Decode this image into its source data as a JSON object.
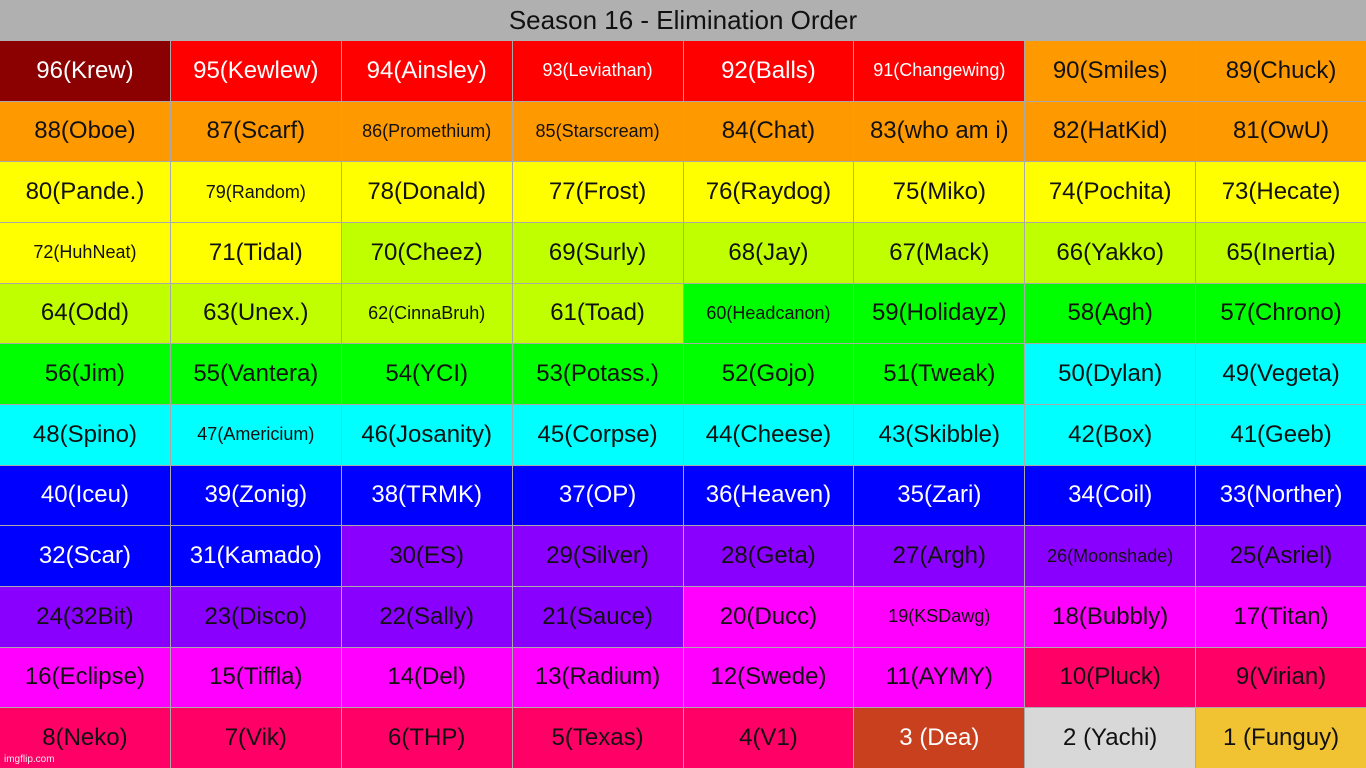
{
  "title": "Season 16 - Elimination Order",
  "watermark": "imgflip.com",
  "colors": {
    "darkred": "#8b0000",
    "red": "#ff0000",
    "orange": "#ff9900",
    "yellow": "#ffff00",
    "lime": "#bfff00",
    "green": "#00ff00",
    "cyan": "#00ffff",
    "blue": "#0000ff",
    "violet": "#8a00ff",
    "magenta": "#ff00ff",
    "pink": "#ff0066",
    "bronze": "#c8401e",
    "silver": "#d8d8d8",
    "gold": "#f1c232"
  },
  "cells": [
    {
      "label": "96(Krew)",
      "color": "darkred",
      "text": "#ffffff"
    },
    {
      "label": "95(Kewlew)",
      "color": "red",
      "text": "#ffffff"
    },
    {
      "label": "94(Ainsley)",
      "color": "red",
      "text": "#ffffff"
    },
    {
      "label": "93(Leviathan)",
      "color": "red",
      "text": "#ffffff",
      "small": true
    },
    {
      "label": "92(Balls)",
      "color": "red",
      "text": "#ffffff"
    },
    {
      "label": "91(Changewing)",
      "color": "red",
      "text": "#ffffff",
      "small": true
    },
    {
      "label": "90(Smiles)",
      "color": "orange",
      "text": "#111111"
    },
    {
      "label": "89(Chuck)",
      "color": "orange",
      "text": "#111111"
    },
    {
      "label": "88(Oboe)",
      "color": "orange",
      "text": "#111111"
    },
    {
      "label": "87(Scarf)",
      "color": "orange",
      "text": "#111111"
    },
    {
      "label": "86(Promethium)",
      "color": "orange",
      "text": "#111111",
      "small": true
    },
    {
      "label": "85(Starscream)",
      "color": "orange",
      "text": "#111111",
      "small": true
    },
    {
      "label": "84(Chat)",
      "color": "orange",
      "text": "#111111"
    },
    {
      "label": "83(who am i)",
      "color": "orange",
      "text": "#111111"
    },
    {
      "label": "82(HatKid)",
      "color": "orange",
      "text": "#111111"
    },
    {
      "label": "81(OwU)",
      "color": "orange",
      "text": "#111111"
    },
    {
      "label": "80(Pande.)",
      "color": "yellow",
      "text": "#111111"
    },
    {
      "label": "79(Random)",
      "color": "yellow",
      "text": "#111111",
      "small": true
    },
    {
      "label": "78(Donald)",
      "color": "yellow",
      "text": "#111111"
    },
    {
      "label": "77(Frost)",
      "color": "yellow",
      "text": "#111111"
    },
    {
      "label": "76(Raydog)",
      "color": "yellow",
      "text": "#111111"
    },
    {
      "label": "75(Miko)",
      "color": "yellow",
      "text": "#111111"
    },
    {
      "label": "74(Pochita)",
      "color": "yellow",
      "text": "#111111"
    },
    {
      "label": "73(Hecate)",
      "color": "yellow",
      "text": "#111111"
    },
    {
      "label": "72(HuhNeat)",
      "color": "yellow",
      "text": "#111111",
      "small": true
    },
    {
      "label": "71(Tidal)",
      "color": "yellow",
      "text": "#111111"
    },
    {
      "label": "70(Cheez)",
      "color": "lime",
      "text": "#111111"
    },
    {
      "label": "69(Surly)",
      "color": "lime",
      "text": "#111111"
    },
    {
      "label": "68(Jay)",
      "color": "lime",
      "text": "#111111"
    },
    {
      "label": "67(Mack)",
      "color": "lime",
      "text": "#111111"
    },
    {
      "label": "66(Yakko)",
      "color": "lime",
      "text": "#111111"
    },
    {
      "label": "65(Inertia)",
      "color": "lime",
      "text": "#111111"
    },
    {
      "label": "64(Odd)",
      "color": "lime",
      "text": "#111111"
    },
    {
      "label": "63(Unex.)",
      "color": "lime",
      "text": "#111111"
    },
    {
      "label": "62(CinnaBruh)",
      "color": "lime",
      "text": "#111111",
      "small": true
    },
    {
      "label": "61(Toad)",
      "color": "lime",
      "text": "#111111"
    },
    {
      "label": "60(Headcanon)",
      "color": "green",
      "text": "#111111",
      "small": true
    },
    {
      "label": "59(Holidayz)",
      "color": "green",
      "text": "#111111"
    },
    {
      "label": "58(Agh)",
      "color": "green",
      "text": "#111111"
    },
    {
      "label": "57(Chrono)",
      "color": "green",
      "text": "#111111"
    },
    {
      "label": "56(Jim)",
      "color": "green",
      "text": "#111111"
    },
    {
      "label": "55(Vantera)",
      "color": "green",
      "text": "#111111"
    },
    {
      "label": "54(YCI)",
      "color": "green",
      "text": "#111111"
    },
    {
      "label": "53(Potass.)",
      "color": "green",
      "text": "#111111"
    },
    {
      "label": "52(Gojo)",
      "color": "green",
      "text": "#111111"
    },
    {
      "label": "51(Tweak)",
      "color": "green",
      "text": "#111111"
    },
    {
      "label": "50(Dylan)",
      "color": "cyan",
      "text": "#111111"
    },
    {
      "label": "49(Vegeta)",
      "color": "cyan",
      "text": "#111111"
    },
    {
      "label": "48(Spino)",
      "color": "cyan",
      "text": "#111111"
    },
    {
      "label": "47(Americium)",
      "color": "cyan",
      "text": "#111111",
      "small": true
    },
    {
      "label": "46(Josanity)",
      "color": "cyan",
      "text": "#111111"
    },
    {
      "label": "45(Corpse)",
      "color": "cyan",
      "text": "#111111"
    },
    {
      "label": "44(Cheese)",
      "color": "cyan",
      "text": "#111111"
    },
    {
      "label": "43(Skibble)",
      "color": "cyan",
      "text": "#111111"
    },
    {
      "label": "42(Box)",
      "color": "cyan",
      "text": "#111111"
    },
    {
      "label": "41(Geeb)",
      "color": "cyan",
      "text": "#111111"
    },
    {
      "label": "40(Iceu)",
      "color": "blue",
      "text": "#ffffff"
    },
    {
      "label": "39(Zonig)",
      "color": "blue",
      "text": "#ffffff"
    },
    {
      "label": "38(TRMK)",
      "color": "blue",
      "text": "#ffffff"
    },
    {
      "label": "37(OP)",
      "color": "blue",
      "text": "#ffffff"
    },
    {
      "label": "36(Heaven)",
      "color": "blue",
      "text": "#ffffff"
    },
    {
      "label": "35(Zari)",
      "color": "blue",
      "text": "#ffffff"
    },
    {
      "label": "34(Coil)",
      "color": "blue",
      "text": "#ffffff"
    },
    {
      "label": "33(Norther)",
      "color": "blue",
      "text": "#ffffff"
    },
    {
      "label": "32(Scar)",
      "color": "blue",
      "text": "#ffffff"
    },
    {
      "label": "31(Kamado)",
      "color": "blue",
      "text": "#ffffff"
    },
    {
      "label": "30(ES)",
      "color": "violet",
      "text": "#111111"
    },
    {
      "label": "29(Silver)",
      "color": "violet",
      "text": "#111111"
    },
    {
      "label": "28(Geta)",
      "color": "violet",
      "text": "#111111"
    },
    {
      "label": "27(Argh)",
      "color": "violet",
      "text": "#111111"
    },
    {
      "label": "26(Moonshade)",
      "color": "violet",
      "text": "#111111",
      "small": true
    },
    {
      "label": "25(Asriel)",
      "color": "violet",
      "text": "#111111"
    },
    {
      "label": "24(32Bit)",
      "color": "violet",
      "text": "#111111"
    },
    {
      "label": "23(Disco)",
      "color": "violet",
      "text": "#111111"
    },
    {
      "label": "22(Sally)",
      "color": "violet",
      "text": "#111111"
    },
    {
      "label": "21(Sauce)",
      "color": "violet",
      "text": "#111111"
    },
    {
      "label": "20(Ducc)",
      "color": "magenta",
      "text": "#111111"
    },
    {
      "label": "19(KSDawg)",
      "color": "magenta",
      "text": "#111111",
      "small": true
    },
    {
      "label": "18(Bubbly)",
      "color": "magenta",
      "text": "#111111"
    },
    {
      "label": "17(Titan)",
      "color": "magenta",
      "text": "#111111"
    },
    {
      "label": "16(Eclipse)",
      "color": "magenta",
      "text": "#111111"
    },
    {
      "label": "15(Tiffla)",
      "color": "magenta",
      "text": "#111111"
    },
    {
      "label": "14(Del)",
      "color": "magenta",
      "text": "#111111"
    },
    {
      "label": "13(Radium)",
      "color": "magenta",
      "text": "#111111"
    },
    {
      "label": "12(Swede)",
      "color": "magenta",
      "text": "#111111"
    },
    {
      "label": "11(AYMY)",
      "color": "magenta",
      "text": "#111111"
    },
    {
      "label": "10(Pluck)",
      "color": "pink",
      "text": "#111111"
    },
    {
      "label": "9(Virian)",
      "color": "pink",
      "text": "#111111"
    },
    {
      "label": "8(Neko)",
      "color": "pink",
      "text": "#111111"
    },
    {
      "label": "7(Vik)",
      "color": "pink",
      "text": "#111111"
    },
    {
      "label": "6(THP)",
      "color": "pink",
      "text": "#111111"
    },
    {
      "label": "5(Texas)",
      "color": "pink",
      "text": "#111111"
    },
    {
      "label": "4(V1)",
      "color": "pink",
      "text": "#111111"
    },
    {
      "label": "3 (Dea)",
      "color": "bronze",
      "text": "#ffffff"
    },
    {
      "label": "2 (Yachi)",
      "color": "silver",
      "text": "#111111"
    },
    {
      "label": "1 (Funguy)",
      "color": "gold",
      "text": "#111111"
    }
  ]
}
